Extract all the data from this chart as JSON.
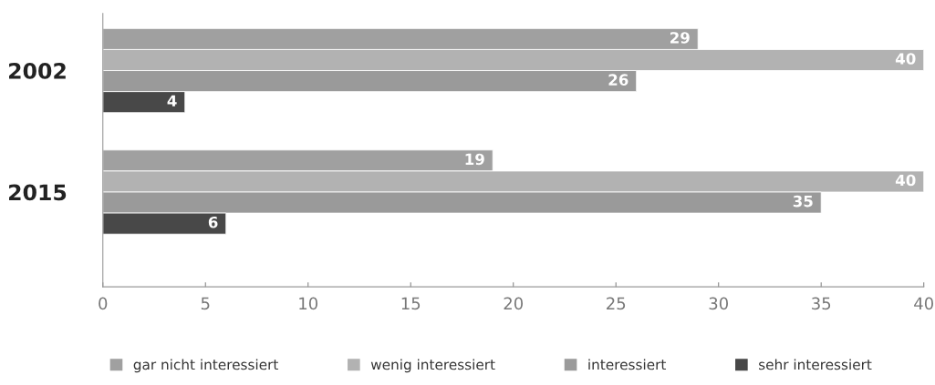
{
  "chart_data": {
    "type": "bar",
    "orientation": "horizontal",
    "categories": [
      "2002",
      "2015"
    ],
    "series": [
      {
        "name": "gar nicht interessiert",
        "color": "#a0a0a0",
        "values": [
          29,
          19
        ]
      },
      {
        "name": "wenig interessiert",
        "color": "#b2b2b2",
        "values": [
          40,
          40
        ]
      },
      {
        "name": "interessiert",
        "color": "#9a9a9a",
        "values": [
          26,
          35
        ]
      },
      {
        "name": "sehr interessiert",
        "color": "#484848",
        "values": [
          4,
          6
        ]
      }
    ],
    "xlim": [
      0,
      40
    ],
    "xticks": [
      0,
      5,
      10,
      15,
      20,
      25,
      30,
      35,
      40
    ],
    "data_labels": true,
    "legend": "bottom",
    "grid": false
  }
}
